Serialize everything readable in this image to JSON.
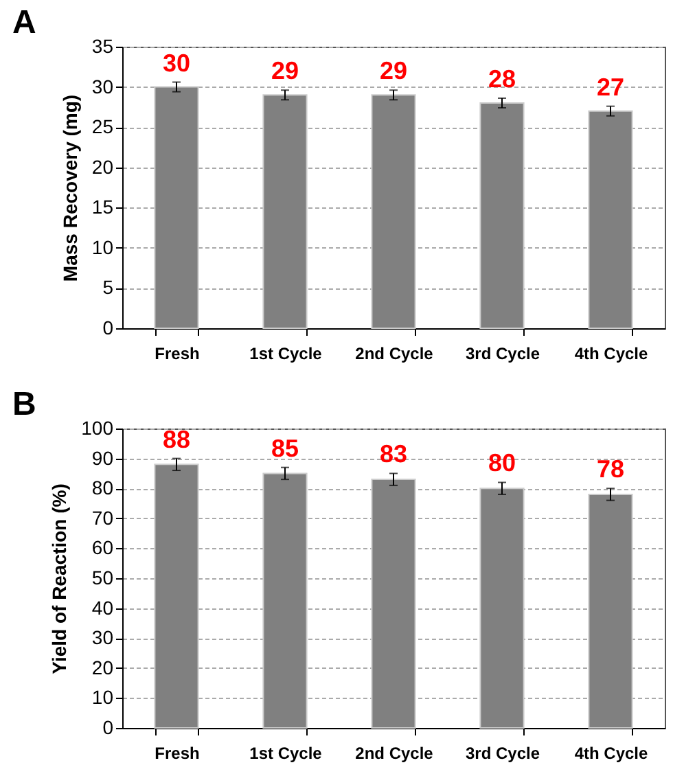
{
  "chart_data": [
    {
      "type": "bar",
      "title": "A",
      "categories": [
        "Fresh",
        "1st Cycle",
        "2nd Cycle",
        "3rd Cycle",
        "4th Cycle"
      ],
      "values": [
        30,
        29,
        29,
        28,
        27
      ],
      "errors": [
        0.6,
        0.6,
        0.6,
        0.6,
        0.6
      ],
      "color": "#808080",
      "ylabel": "Mass Recovery (mg)",
      "ylim": [
        0,
        35
      ],
      "yticks": [
        0,
        5,
        10,
        15,
        20,
        25,
        30,
        35
      ],
      "grid": "y",
      "data_labels": true
    },
    {
      "type": "bar",
      "title": "B",
      "categories": [
        "Fresh",
        "1st Cycle",
        "2nd Cycle",
        "3rd Cycle",
        "4th Cycle"
      ],
      "values": [
        88,
        85,
        83,
        80,
        78
      ],
      "errors": [
        2,
        2,
        2,
        2,
        2
      ],
      "color": "#808080",
      "ylabel": "Yield of Reaction (%)",
      "ylim": [
        0,
        100
      ],
      "yticks": [
        0,
        10,
        20,
        30,
        40,
        50,
        60,
        70,
        80,
        90,
        100
      ],
      "grid": "y",
      "data_labels": true
    }
  ]
}
